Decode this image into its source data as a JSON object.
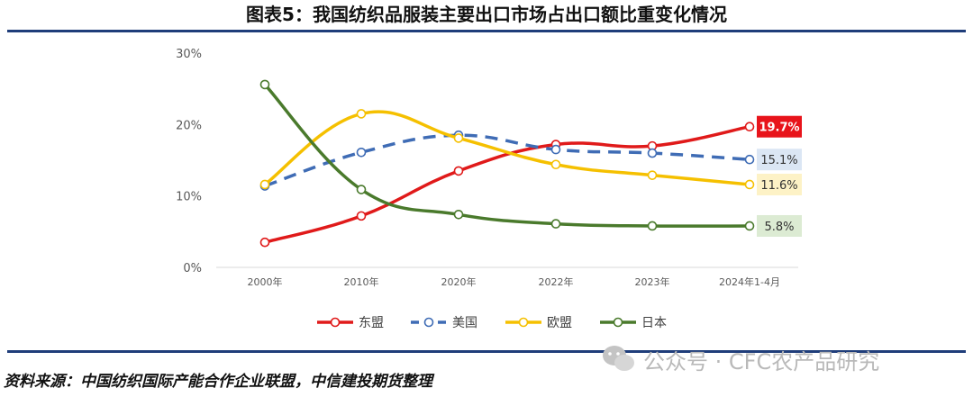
{
  "title": "图表5：我国纺织品服装主要出口市场占出口额比重变化情况",
  "source": "资料来源：中国纺织国际产能合作企业联盟，中信建投期货整理",
  "watermark": "公众号 · CFC农产品研究",
  "chart_data": {
    "type": "line",
    "categories": [
      "2000年",
      "2010年",
      "2020年",
      "2022年",
      "2023年",
      "2024年1-4月"
    ],
    "y_ticks": [
      "0%",
      "10%",
      "20%",
      "30%"
    ],
    "ylim": [
      0,
      30
    ],
    "grid": false,
    "legend_position": "bottom",
    "series": [
      {
        "name": "东盟",
        "values": [
          3.5,
          7.2,
          13.5,
          17.2,
          17.0,
          19.7
        ],
        "color": "#e01a1a",
        "dash": false,
        "end_label": "19.7%",
        "end_label_bg": "#e8141b",
        "end_label_color": "#ffffff"
      },
      {
        "name": "美国",
        "values": [
          11.4,
          16.1,
          18.5,
          16.5,
          16.0,
          15.1
        ],
        "color": "#3f6cb5",
        "dash": true,
        "end_label": "15.1%",
        "end_label_bg": "#dbe6f4",
        "end_label_color": "#333333"
      },
      {
        "name": "欧盟",
        "values": [
          11.6,
          21.5,
          18.1,
          14.4,
          12.9,
          11.6
        ],
        "color": "#f5c000",
        "dash": false,
        "end_label": "11.6%",
        "end_label_bg": "#fdf2c6",
        "end_label_color": "#333333"
      },
      {
        "name": "日本",
        "values": [
          25.6,
          10.9,
          7.4,
          6.1,
          5.8,
          5.8
        ],
        "color": "#4a7a2c",
        "dash": false,
        "end_label": "5.8%",
        "end_label_bg": "#dcebd3",
        "end_label_color": "#333333"
      }
    ]
  }
}
